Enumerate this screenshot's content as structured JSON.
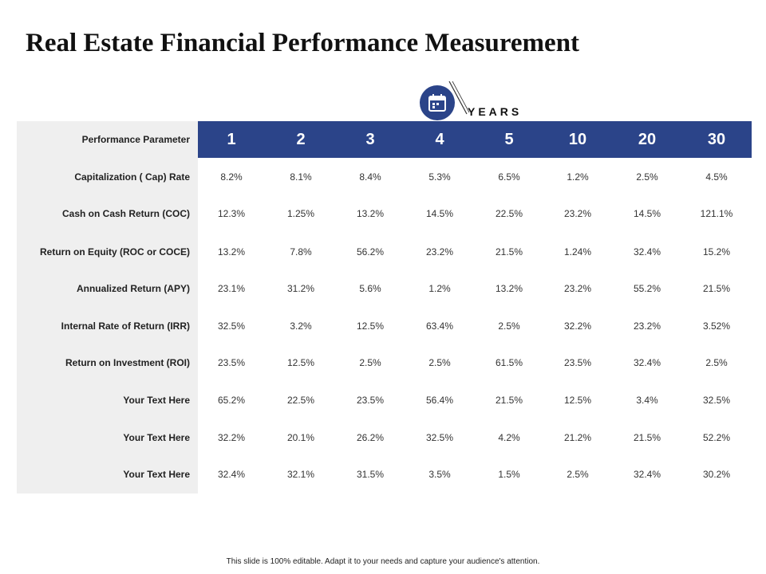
{
  "title": "Real Estate Financial Performance Measurement",
  "years_label": "YEARS",
  "years_icon": "calendar-icon",
  "colors": {
    "accent": "#2b4489",
    "label_bg": "#efefef"
  },
  "table": {
    "header_label": "Performance Parameter",
    "columns": [
      "1",
      "2",
      "3",
      "4",
      "5",
      "10",
      "20",
      "30"
    ],
    "rows": [
      {
        "label": "Capitalization ( Cap) Rate",
        "values": [
          "8.2%",
          "8.1%",
          "8.4%",
          "5.3%",
          "6.5%",
          "1.2%",
          "2.5%",
          "4.5%"
        ]
      },
      {
        "label": "Cash on Cash Return (COC)",
        "values": [
          "12.3%",
          "1.25%",
          "13.2%",
          "14.5%",
          "22.5%",
          "23.2%",
          "14.5%",
          "121.1%"
        ]
      },
      {
        "label": "Return on Equity (ROC or COCE)",
        "values": [
          "13.2%",
          "7.8%",
          "56.2%",
          "23.2%",
          "21.5%",
          "1.24%",
          "32.4%",
          "15.2%"
        ]
      },
      {
        "label": "Annualized Return (APY)",
        "values": [
          "23.1%",
          "31.2%",
          "5.6%",
          "1.2%",
          "13.2%",
          "23.2%",
          "55.2%",
          "21.5%"
        ]
      },
      {
        "label": "Internal Rate of Return (IRR)",
        "values": [
          "32.5%",
          "3.2%",
          "12.5%",
          "63.4%",
          "2.5%",
          "32.2%",
          "23.2%",
          "3.52%"
        ]
      },
      {
        "label": "Return on Investment (ROI)",
        "values": [
          "23.5%",
          "12.5%",
          "2.5%",
          "2.5%",
          "61.5%",
          "23.5%",
          "32.4%",
          "2.5%"
        ]
      },
      {
        "label": "Your Text Here",
        "values": [
          "65.2%",
          "22.5%",
          "23.5%",
          "56.4%",
          "21.5%",
          "12.5%",
          "3.4%",
          "32.5%"
        ]
      },
      {
        "label": "Your Text Here",
        "values": [
          "32.2%",
          "20.1%",
          "26.2%",
          "32.5%",
          "4.2%",
          "21.2%",
          "21.5%",
          "52.2%"
        ]
      },
      {
        "label": "Your Text Here",
        "values": [
          "32.4%",
          "32.1%",
          "31.5%",
          "3.5%",
          "1.5%",
          "2.5%",
          "32.4%",
          "30.2%"
        ]
      }
    ]
  },
  "footer": "This slide is 100% editable. Adapt it to your needs and capture your audience's attention."
}
